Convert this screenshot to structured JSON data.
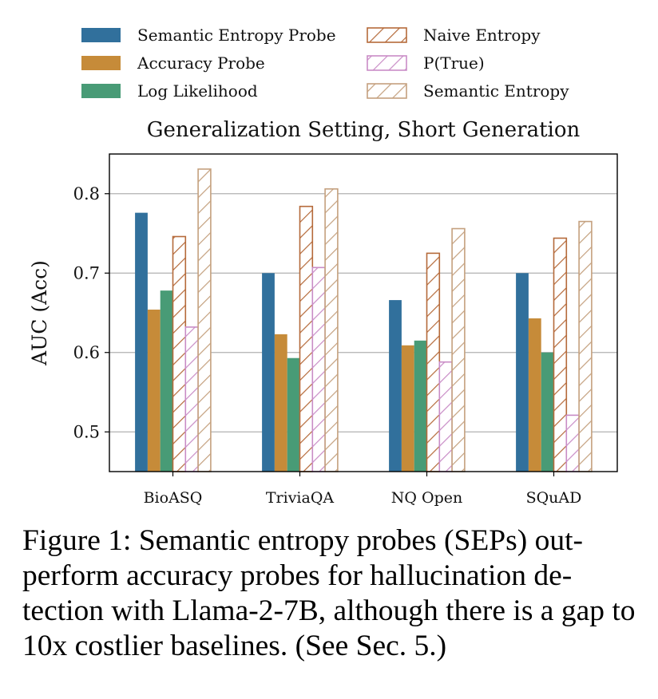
{
  "chart_data": {
    "type": "bar",
    "title": "Generalization Setting, Short Generation",
    "xlabel": "",
    "ylabel": "AUC (Acc)",
    "ylim": [
      0.45,
      0.85
    ],
    "yticks": [
      0.5,
      0.6,
      0.7,
      0.8
    ],
    "ytick_labels": [
      "0.5",
      "0.6",
      "0.7",
      "0.8"
    ],
    "grid": true,
    "legend_position": "top",
    "categories": [
      "BioASQ",
      "TriviaQA",
      "NQ Open",
      "SQuAD"
    ],
    "series": [
      {
        "name": "Semantic Entropy Probe",
        "color": "#31709c",
        "style": "solid",
        "values": [
          0.776,
          0.7,
          0.666,
          0.7
        ]
      },
      {
        "name": "Accuracy Probe",
        "color": "#c68b39",
        "style": "solid",
        "values": [
          0.654,
          0.623,
          0.609,
          0.643
        ]
      },
      {
        "name": "Log Likelihood",
        "color": "#489b76",
        "style": "solid",
        "values": [
          0.678,
          0.593,
          0.615,
          0.6
        ]
      },
      {
        "name": "Naive Entropy",
        "color": "#b56a3a",
        "style": "hatch",
        "values": [
          0.746,
          0.784,
          0.725,
          0.744
        ]
      },
      {
        "name": "P(True)",
        "color": "#c98cc6",
        "style": "hatch",
        "values": [
          0.632,
          0.707,
          0.588,
          0.521
        ]
      },
      {
        "name": "Semantic Entropy",
        "color": "#c4a07e",
        "style": "hatch",
        "values": [
          0.831,
          0.806,
          0.756,
          0.765
        ]
      }
    ]
  },
  "caption": "Figure 1: Semantic entropy probes (SEPs) out-perform accuracy probes for hallucination de-tection with Llama-2-7B, although there is a gap to 10x costlier baselines. (See Sec. 5.)"
}
